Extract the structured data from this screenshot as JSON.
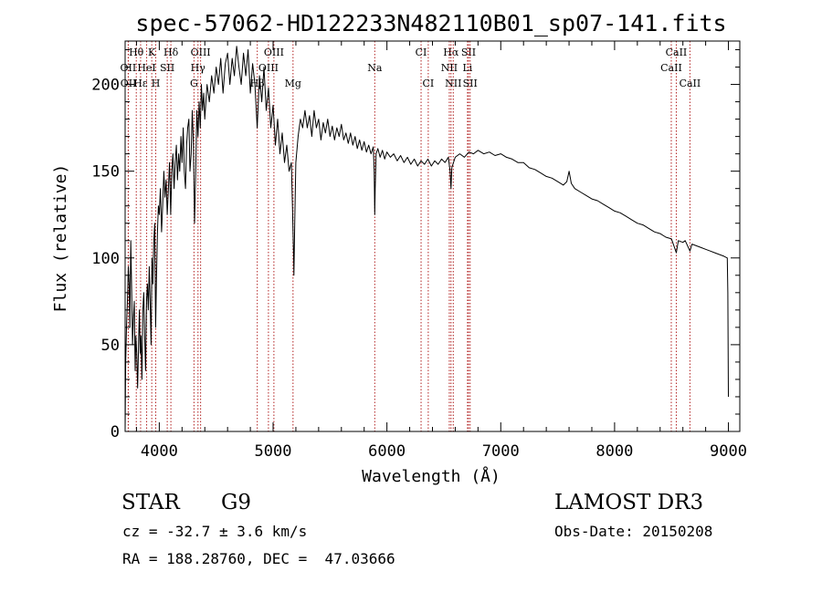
{
  "chart_data": {
    "type": "line",
    "title": "spec-57062-HD122233N482110B01_sp07-141.fits",
    "xlabel": "Wavelength (Å)",
    "ylabel": "Flux (relative)",
    "xlim": [
      3700,
      9100
    ],
    "ylim": [
      0,
      225
    ],
    "x_ticks": [
      4000,
      5000,
      6000,
      7000,
      8000,
      9000
    ],
    "y_ticks": [
      0,
      50,
      100,
      150,
      200
    ],
    "grid": false,
    "series": [
      {
        "points": [
          [
            3700,
            0
          ],
          [
            3705,
            40
          ],
          [
            3712,
            60
          ],
          [
            3720,
            75
          ],
          [
            3728,
            95
          ],
          [
            3735,
            85
          ],
          [
            3742,
            60
          ],
          [
            3750,
            110
          ],
          [
            3758,
            80
          ],
          [
            3765,
            50
          ],
          [
            3772,
            65
          ],
          [
            3780,
            75
          ],
          [
            3788,
            35
          ],
          [
            3795,
            55
          ],
          [
            3802,
            45
          ],
          [
            3810,
            25
          ],
          [
            3818,
            50
          ],
          [
            3825,
            70
          ],
          [
            3832,
            45
          ],
          [
            3840,
            55
          ],
          [
            3848,
            30
          ],
          [
            3856,
            70
          ],
          [
            3864,
            80
          ],
          [
            3872,
            55
          ],
          [
            3880,
            35
          ],
          [
            3888,
            75
          ],
          [
            3896,
            85
          ],
          [
            3904,
            70
          ],
          [
            3912,
            95
          ],
          [
            3920,
            75
          ],
          [
            3928,
            50
          ],
          [
            3936,
            100
          ],
          [
            3944,
            85
          ],
          [
            3952,
            110
          ],
          [
            3960,
            120
          ],
          [
            3968,
            60
          ],
          [
            3976,
            90
          ],
          [
            3984,
            115
          ],
          [
            3992,
            130
          ],
          [
            4000,
            125
          ],
          [
            4010,
            140
          ],
          [
            4020,
            115
          ],
          [
            4030,
            130
          ],
          [
            4040,
            150
          ],
          [
            4050,
            135
          ],
          [
            4060,
            145
          ],
          [
            4070,
            125
          ],
          [
            4080,
            140
          ],
          [
            4090,
            155
          ],
          [
            4100,
            125
          ],
          [
            4110,
            150
          ],
          [
            4120,
            160
          ],
          [
            4130,
            140
          ],
          [
            4140,
            155
          ],
          [
            4150,
            165
          ],
          [
            4160,
            145
          ],
          [
            4170,
            160
          ],
          [
            4180,
            150
          ],
          [
            4190,
            170
          ],
          [
            4200,
            155
          ],
          [
            4210,
            175
          ],
          [
            4220,
            150
          ],
          [
            4230,
            140
          ],
          [
            4240,
            165
          ],
          [
            4250,
            175
          ],
          [
            4260,
            180
          ],
          [
            4270,
            150
          ],
          [
            4280,
            160
          ],
          [
            4290,
            185
          ],
          [
            4300,
            165
          ],
          [
            4310,
            120
          ],
          [
            4320,
            150
          ],
          [
            4330,
            185
          ],
          [
            4340,
            170
          ],
          [
            4350,
            190
          ],
          [
            4360,
            175
          ],
          [
            4370,
            200
          ],
          [
            4380,
            185
          ],
          [
            4390,
            195
          ],
          [
            4400,
            180
          ],
          [
            4420,
            200
          ],
          [
            4440,
            190
          ],
          [
            4460,
            205
          ],
          [
            4480,
            195
          ],
          [
            4500,
            210
          ],
          [
            4520,
            200
          ],
          [
            4540,
            215
          ],
          [
            4560,
            195
          ],
          [
            4580,
            212
          ],
          [
            4600,
            218
          ],
          [
            4620,
            200
          ],
          [
            4640,
            215
          ],
          [
            4660,
            205
          ],
          [
            4680,
            222
          ],
          [
            4700,
            210
          ],
          [
            4720,
            200
          ],
          [
            4740,
            218
          ],
          [
            4760,
            205
          ],
          [
            4780,
            220
          ],
          [
            4800,
            195
          ],
          [
            4820,
            212
          ],
          [
            4840,
            200
          ],
          [
            4860,
            175
          ],
          [
            4880,
            205
          ],
          [
            4900,
            190
          ],
          [
            4920,
            210
          ],
          [
            4940,
            185
          ],
          [
            4960,
            198
          ],
          [
            4980,
            175
          ],
          [
            5000,
            188
          ],
          [
            5020,
            165
          ],
          [
            5040,
            180
          ],
          [
            5060,
            160
          ],
          [
            5080,
            172
          ],
          [
            5100,
            155
          ],
          [
            5120,
            165
          ],
          [
            5140,
            150
          ],
          [
            5160,
            155
          ],
          [
            5170,
            130
          ],
          [
            5180,
            100
          ],
          [
            5183,
            90
          ],
          [
            5190,
            120
          ],
          [
            5200,
            155
          ],
          [
            5220,
            170
          ],
          [
            5240,
            180
          ],
          [
            5260,
            175
          ],
          [
            5280,
            185
          ],
          [
            5300,
            175
          ],
          [
            5320,
            182
          ],
          [
            5340,
            170
          ],
          [
            5360,
            185
          ],
          [
            5380,
            175
          ],
          [
            5400,
            180
          ],
          [
            5420,
            168
          ],
          [
            5440,
            178
          ],
          [
            5460,
            172
          ],
          [
            5480,
            180
          ],
          [
            5500,
            170
          ],
          [
            5520,
            176
          ],
          [
            5540,
            168
          ],
          [
            5560,
            175
          ],
          [
            5580,
            170
          ],
          [
            5600,
            177
          ],
          [
            5620,
            168
          ],
          [
            5640,
            172
          ],
          [
            5660,
            166
          ],
          [
            5680,
            172
          ],
          [
            5700,
            165
          ],
          [
            5720,
            170
          ],
          [
            5740,
            163
          ],
          [
            5760,
            168
          ],
          [
            5780,
            162
          ],
          [
            5800,
            167
          ],
          [
            5820,
            161
          ],
          [
            5840,
            165
          ],
          [
            5860,
            160
          ],
          [
            5880,
            164
          ],
          [
            5888,
            150
          ],
          [
            5893,
            125
          ],
          [
            5897,
            140
          ],
          [
            5905,
            160
          ],
          [
            5920,
            163
          ],
          [
            5940,
            158
          ],
          [
            5960,
            162
          ],
          [
            5980,
            157
          ],
          [
            6000,
            161
          ],
          [
            6030,
            158
          ],
          [
            6060,
            160
          ],
          [
            6090,
            156
          ],
          [
            6120,
            159
          ],
          [
            6150,
            155
          ],
          [
            6180,
            158
          ],
          [
            6210,
            154
          ],
          [
            6240,
            157
          ],
          [
            6270,
            153
          ],
          [
            6300,
            156
          ],
          [
            6330,
            154
          ],
          [
            6360,
            157
          ],
          [
            6390,
            153
          ],
          [
            6420,
            156
          ],
          [
            6450,
            154
          ],
          [
            6480,
            157
          ],
          [
            6510,
            155
          ],
          [
            6540,
            158
          ],
          [
            6555,
            150
          ],
          [
            6563,
            140
          ],
          [
            6570,
            152
          ],
          [
            6600,
            158
          ],
          [
            6640,
            160
          ],
          [
            6680,
            158
          ],
          [
            6720,
            161
          ],
          [
            6760,
            160
          ],
          [
            6800,
            162
          ],
          [
            6850,
            160
          ],
          [
            6900,
            161
          ],
          [
            6950,
            159
          ],
          [
            7000,
            160
          ],
          [
            7050,
            158
          ],
          [
            7100,
            157
          ],
          [
            7150,
            155
          ],
          [
            7200,
            155
          ],
          [
            7250,
            152
          ],
          [
            7300,
            151
          ],
          [
            7350,
            149
          ],
          [
            7400,
            147
          ],
          [
            7450,
            146
          ],
          [
            7500,
            144
          ],
          [
            7550,
            142
          ],
          [
            7580,
            144
          ],
          [
            7600,
            150
          ],
          [
            7620,
            143
          ],
          [
            7650,
            140
          ],
          [
            7700,
            138
          ],
          [
            7750,
            136
          ],
          [
            7800,
            134
          ],
          [
            7850,
            133
          ],
          [
            7900,
            131
          ],
          [
            7950,
            129
          ],
          [
            8000,
            127
          ],
          [
            8050,
            126
          ],
          [
            8100,
            124
          ],
          [
            8150,
            122
          ],
          [
            8200,
            120
          ],
          [
            8250,
            119
          ],
          [
            8300,
            117
          ],
          [
            8350,
            115
          ],
          [
            8400,
            114
          ],
          [
            8450,
            112
          ],
          [
            8500,
            111
          ],
          [
            8542,
            103
          ],
          [
            8560,
            110
          ],
          [
            8600,
            109
          ],
          [
            8620,
            110
          ],
          [
            8662,
            104
          ],
          [
            8680,
            108
          ],
          [
            8720,
            107
          ],
          [
            8760,
            106
          ],
          [
            8800,
            105
          ],
          [
            8840,
            104
          ],
          [
            8880,
            103
          ],
          [
            8920,
            102
          ],
          [
            8960,
            101
          ],
          [
            8990,
            100
          ],
          [
            8995,
            80
          ],
          [
            9000,
            20
          ]
        ]
      }
    ],
    "line_color": "#000000",
    "marker_color": "#b22222",
    "line_markers": [
      {
        "label": "Hθ",
        "x": 3798,
        "row": 0
      },
      {
        "label": "K",
        "x": 3934,
        "row": 0
      },
      {
        "label": "Hδ",
        "x": 4102,
        "row": 0
      },
      {
        "label": "OIII",
        "x": 4363,
        "row": 0
      },
      {
        "label": "OIII",
        "x": 5007,
        "row": 0
      },
      {
        "label": "CI",
        "x": 6300,
        "row": 0
      },
      {
        "label": "Hα",
        "x": 6563,
        "row": 0
      },
      {
        "label": "SII",
        "x": 6717,
        "row": 0
      },
      {
        "label": "CaII",
        "x": 8542,
        "row": 0
      },
      {
        "label": "OII",
        "x": 3727,
        "row": 1
      },
      {
        "label": "HeI",
        "x": 3889,
        "row": 1
      },
      {
        "label": "SII",
        "x": 4070,
        "row": 1
      },
      {
        "label": "Hγ",
        "x": 4340,
        "row": 1
      },
      {
        "label": "OIII",
        "x": 4959,
        "row": 1
      },
      {
        "label": "Na",
        "x": 5893,
        "row": 1
      },
      {
        "label": "NII",
        "x": 6548,
        "row": 1
      },
      {
        "label": "Li",
        "x": 6708,
        "row": 1
      },
      {
        "label": "CaII",
        "x": 8498,
        "row": 1
      },
      {
        "label": "OII",
        "x": 3729,
        "row": 2
      },
      {
        "label": "Hε",
        "x": 3836,
        "row": 2
      },
      {
        "label": "H",
        "x": 3969,
        "row": 2
      },
      {
        "label": "G",
        "x": 4305,
        "row": 2
      },
      {
        "label": "Hβ",
        "x": 4861,
        "row": 2
      },
      {
        "label": "Mg",
        "x": 5175,
        "row": 2
      },
      {
        "label": "CI",
        "x": 6363,
        "row": 2
      },
      {
        "label": "NII",
        "x": 6583,
        "row": 2
      },
      {
        "label": "SII",
        "x": 6731,
        "row": 2
      },
      {
        "label": "CaII",
        "x": 8662,
        "row": 2
      }
    ]
  },
  "info": {
    "object_class": "STAR",
    "subclass": "G9",
    "survey": "LAMOST DR3",
    "redshift": "cz = -32.7 ± 3.6 km/s",
    "obs_date": "Obs-Date: 20150208",
    "coords": "RA = 188.28760, DEC =  47.03666"
  }
}
